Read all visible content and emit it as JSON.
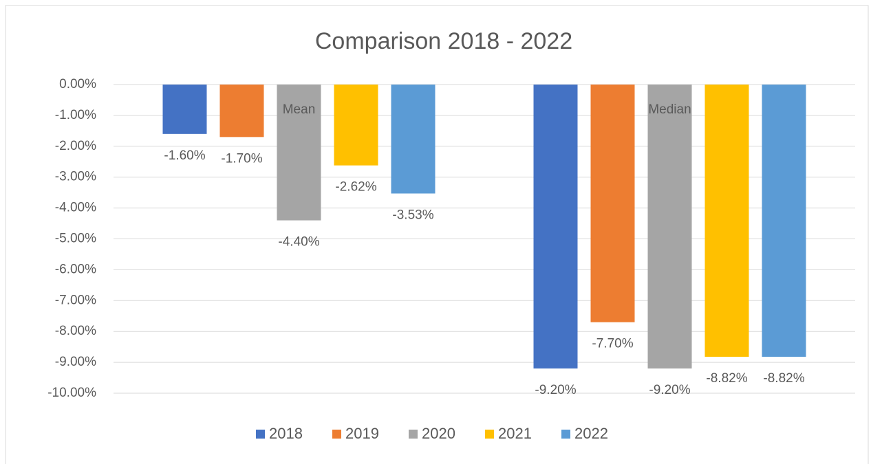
{
  "chart_data": {
    "type": "bar",
    "title": "Comparison 2018 - 2022",
    "categories": [
      "Mean",
      "Median"
    ],
    "series": [
      {
        "name": "2018",
        "color": "#4472c4",
        "values": [
          -1.6,
          -9.2
        ],
        "value_labels": [
          "-1.60%",
          "-9.20%"
        ]
      },
      {
        "name": "2019",
        "color": "#ed7d31",
        "values": [
          -1.7,
          -7.7
        ],
        "value_labels": [
          "-1.70%",
          "-7.70%"
        ]
      },
      {
        "name": "2020",
        "color": "#a5a5a5",
        "values": [
          -4.4,
          -9.2
        ],
        "value_labels": [
          "-4.40%",
          "-9.20%"
        ]
      },
      {
        "name": "2021",
        "color": "#ffc000",
        "values": [
          -2.62,
          -8.82
        ],
        "value_labels": [
          "-2.62%",
          "-8.82%"
        ]
      },
      {
        "name": "2022",
        "color": "#5b9bd5",
        "values": [
          -3.53,
          -8.82
        ],
        "value_labels": [
          "-3.53%",
          "-8.82%"
        ]
      }
    ],
    "ylim": [
      -10,
      0
    ],
    "yticks": [
      {
        "value": 0,
        "label": "0.00%"
      },
      {
        "value": -1,
        "label": "-1.00%"
      },
      {
        "value": -2,
        "label": "-2.00%"
      },
      {
        "value": -3,
        "label": "-3.00%"
      },
      {
        "value": -4,
        "label": "-4.00%"
      },
      {
        "value": -5,
        "label": "-5.00%"
      },
      {
        "value": -6,
        "label": "-6.00%"
      },
      {
        "value": -7,
        "label": "-7.00%"
      },
      {
        "value": -8,
        "label": "-8.00%"
      },
      {
        "value": -9,
        "label": "-9.00%"
      },
      {
        "value": -10,
        "label": "-10.00%"
      }
    ],
    "grid": true,
    "legend": "bottom"
  }
}
